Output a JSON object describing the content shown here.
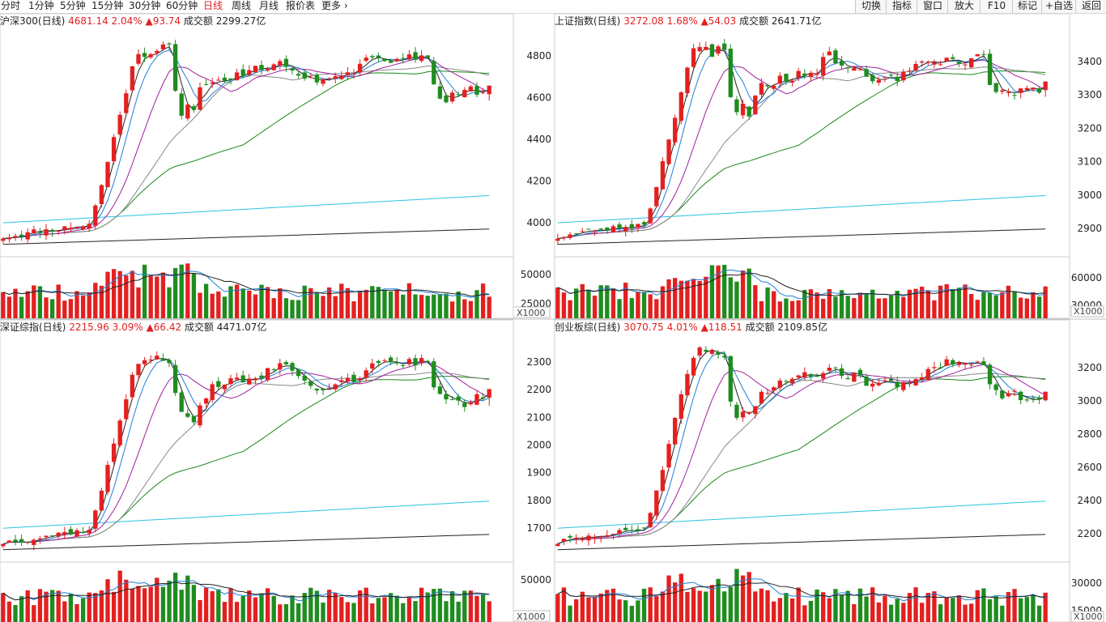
{
  "toolbar": {
    "timeframes": [
      "分时",
      "1分钟",
      "5分钟",
      "15分钟",
      "30分钟",
      "60分钟",
      "日线",
      "周线",
      "月线",
      "报价表",
      "更多"
    ],
    "active_timeframe": "日线",
    "right_buttons": [
      "切换",
      "指标",
      "窗口",
      "放大",
      "F10",
      "标记",
      "+自选",
      "返回"
    ]
  },
  "colors": {
    "up": "#e32020",
    "down": "#1f8c1f",
    "ma5": "#222222",
    "ma10": "#1f7fd6",
    "ma20": "#a020a0",
    "ma60": "#888888",
    "ma120": "#1a8a1a",
    "ma250": "#27c4e0",
    "ma500": "#222222"
  },
  "volume_unit": "X1000",
  "panels": [
    {
      "id": "hs300",
      "name": "沪深300(日线)",
      "price": "4681.14",
      "pct": "2.04%",
      "change": "▲93.74",
      "turnover": "成交额 2299.27亿",
      "price_axis": [],
      "volume_axis": [
        "50000",
        "25000"
      ]
    },
    {
      "id": "shanghai",
      "name": "上证指数(日线)",
      "price": "3272.08",
      "pct": "1.68%",
      "change": "▲54.03",
      "turnover": "成交额 2641.71亿",
      "price_axis_left": [
        "4800",
        "4600",
        "4400",
        "4200",
        "4000"
      ],
      "price_axis_right": [
        "3400",
        "3300",
        "3200",
        "3100",
        "3000",
        "2900"
      ],
      "volume_axis": [
        "50000",
        "25000"
      ],
      "volume_axis_right": [
        "60000",
        "30000"
      ]
    },
    {
      "id": "szcomp",
      "name": "深证综指(日线)",
      "price": "2215.96",
      "pct": "3.09%",
      "change": "▲66.42",
      "turnover": "成交额 4471.07亿",
      "price_axis": [],
      "volume_axis": []
    },
    {
      "id": "chinext",
      "name": "创业板综(日线)",
      "price": "3070.75",
      "pct": "4.01%",
      "change": "▲118.51",
      "turnover": "成交额 2109.85亿",
      "price_axis_left": [
        "2300",
        "2200",
        "2100",
        "2000",
        "1900",
        "1800",
        "1700"
      ],
      "price_axis_right": [
        "3200",
        "3000",
        "2800",
        "2600",
        "2400",
        "2200"
      ],
      "volume_axis": [
        "50000"
      ],
      "volume_axis_right": [
        "30000",
        "15000"
      ]
    }
  ]
}
